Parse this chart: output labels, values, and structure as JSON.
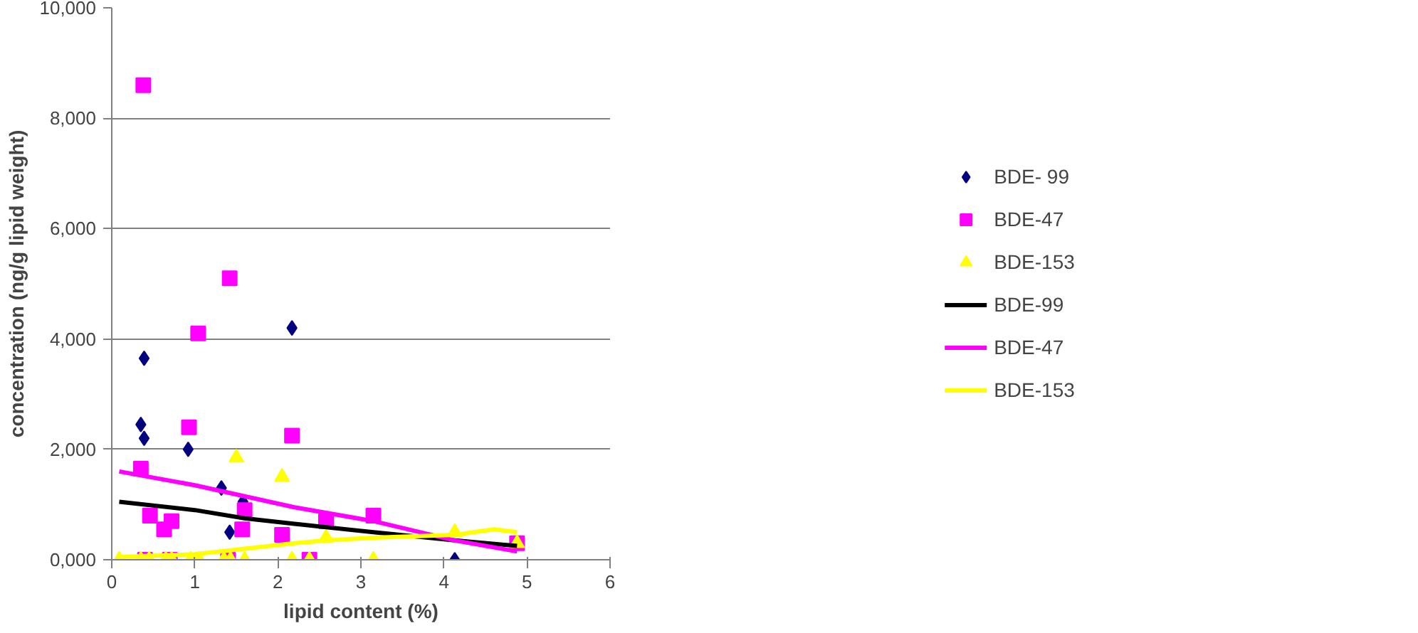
{
  "chart_data": {
    "type": "scatter",
    "xlabel": "lipid content (%)",
    "ylabel": "concentration (ng/g lipid weight)",
    "xlim": [
      0,
      6
    ],
    "xticks": [
      0,
      1,
      2,
      3,
      4,
      5,
      6
    ],
    "ylim": [
      0,
      10000
    ],
    "yticks": [
      {
        "value": 0,
        "label": "0,000"
      },
      {
        "value": 2000,
        "label": "2,000"
      },
      {
        "value": 4000,
        "label": "4,000"
      },
      {
        "value": 6000,
        "label": "6,000"
      },
      {
        "value": 8000,
        "label": "8,000"
      },
      {
        "value": 10000,
        "label": "10,000"
      }
    ],
    "grid": "y",
    "legend": "right",
    "series": [
      {
        "name": "BDE- 99",
        "color": "#000080",
        "marker": "diamond",
        "x": [
          0.35,
          0.39,
          0.39,
          0.92,
          1.32,
          1.58,
          1.42,
          2.17,
          4.13
        ],
        "values": [
          2450,
          3650,
          2200,
          2000,
          1300,
          1050,
          500,
          4200,
          0
        ]
      },
      {
        "name": "BDE-47",
        "color": "#ff00ff",
        "marker": "square",
        "x": [
          0.38,
          0.35,
          0.46,
          0.63,
          0.72,
          0.93,
          1.04,
          1.42,
          1.6,
          1.57,
          2.05,
          2.17,
          2.58,
          3.15,
          4.88,
          0.4,
          0.7,
          2.38,
          1.4
        ],
        "values": [
          8600,
          1650,
          800,
          550,
          700,
          2400,
          4100,
          5100,
          900,
          550,
          450,
          2250,
          700,
          800,
          300,
          0,
          0,
          0,
          0
        ]
      },
      {
        "name": "BDE-153",
        "color": "#ffff00",
        "marker": "triangle",
        "x": [
          0.09,
          0.35,
          0.45,
          0.65,
          0.72,
          0.95,
          1.05,
          1.35,
          1.43,
          1.5,
          1.6,
          2.05,
          2.17,
          2.38,
          2.58,
          3.15,
          4.13,
          4.88
        ],
        "values": [
          0,
          0,
          0,
          0,
          0,
          0,
          0,
          0,
          0,
          1850,
          0,
          1500,
          0,
          0,
          400,
          0,
          500,
          300
        ]
      },
      {
        "name": "BDE-99",
        "type": "line",
        "color": "#000000",
        "x": [
          0.09,
          1.0,
          1.6,
          2.2,
          3.15,
          4.13,
          4.88
        ],
        "values": [
          1050,
          900,
          750,
          650,
          500,
          350,
          250
        ]
      },
      {
        "name": "BDE-47",
        "type": "line",
        "color": "#ff00ff",
        "x": [
          0.09,
          1.0,
          1.6,
          2.2,
          3.15,
          4.13,
          4.88
        ],
        "values": [
          1600,
          1350,
          1150,
          950,
          700,
          350,
          150
        ]
      },
      {
        "name": "BDE-153",
        "type": "line",
        "color": "#ffff00",
        "x": [
          0.09,
          1.0,
          1.6,
          2.2,
          2.6,
          3.15,
          4.13,
          4.6,
          4.88
        ],
        "values": [
          50,
          100,
          200,
          300,
          350,
          400,
          450,
          550,
          500
        ]
      }
    ]
  }
}
